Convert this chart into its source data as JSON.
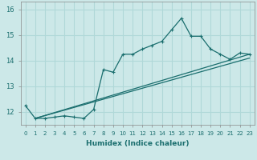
{
  "xlabel": "Humidex (Indice chaleur)",
  "bg_color": "#cce8e8",
  "grid_color": "#b0d8d8",
  "line_color": "#1a6e6e",
  "xlim": [
    -0.5,
    23.5
  ],
  "ylim": [
    11.5,
    16.3
  ],
  "yticks": [
    12,
    13,
    14,
    15,
    16
  ],
  "xticks": [
    0,
    1,
    2,
    3,
    4,
    5,
    6,
    7,
    8,
    9,
    10,
    11,
    12,
    13,
    14,
    15,
    16,
    17,
    18,
    19,
    20,
    21,
    22,
    23
  ],
  "series1": [
    [
      0,
      12.25
    ],
    [
      1,
      11.75
    ],
    [
      2,
      11.75
    ],
    [
      3,
      11.8
    ],
    [
      4,
      11.85
    ],
    [
      5,
      11.8
    ],
    [
      6,
      11.75
    ],
    [
      7,
      12.1
    ],
    [
      8,
      13.65
    ],
    [
      9,
      13.55
    ],
    [
      10,
      14.25
    ],
    [
      11,
      14.25
    ],
    [
      12,
      14.45
    ],
    [
      13,
      14.6
    ],
    [
      14,
      14.75
    ],
    [
      15,
      15.2
    ],
    [
      16,
      15.65
    ],
    [
      17,
      14.95
    ],
    [
      18,
      14.95
    ],
    [
      19,
      14.45
    ],
    [
      20,
      14.25
    ],
    [
      21,
      14.05
    ],
    [
      22,
      14.3
    ],
    [
      23,
      14.25
    ]
  ],
  "series2": [
    [
      1,
      11.75
    ],
    [
      23,
      14.25
    ]
  ],
  "series3": [
    [
      1,
      11.75
    ],
    [
      23,
      14.1
    ]
  ]
}
